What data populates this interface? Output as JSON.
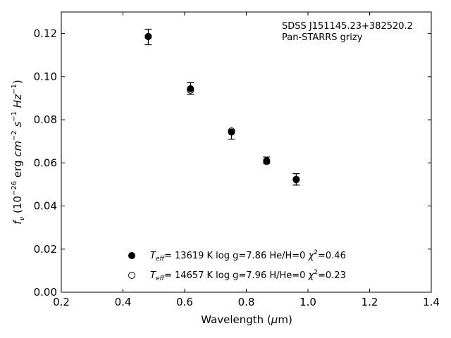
{
  "chart_data": {
    "type": "scatter",
    "xlim": [
      0.2,
      1.4
    ],
    "ylim": [
      0.0,
      0.13
    ],
    "xticks": [
      "0.2",
      "0.4",
      "0.6",
      "0.8",
      "1.0",
      "1.2",
      "1.4"
    ],
    "yticks": [
      "0.00",
      "0.02",
      "0.04",
      "0.06",
      "0.08",
      "0.10",
      "0.12"
    ],
    "xlabel": {
      "pre": "Wavelength (",
      "sym": "μ",
      "post": "m)"
    },
    "ylabel": {
      "f": "f",
      "nu": "ν",
      "p1": " (10",
      "e1": "−26",
      "p2": " erg ",
      "cm": "cm",
      "e2": "−2",
      "s": "s",
      "e3": "−1",
      "hz": "Hz",
      "e4": "−1",
      "p3": ")"
    },
    "annotation": [
      "SDSS J151145.23+382520.2",
      "Pan-STARRS grizy"
    ],
    "grid": false,
    "legend_placement": "lower-center",
    "observed": {
      "x": [
        0.482,
        0.619,
        0.752,
        0.866,
        0.962
      ],
      "y": [
        0.1186,
        0.0944,
        0.0746,
        0.0612,
        0.0524
      ],
      "err_low": [
        0.1148,
        0.0918,
        0.071,
        0.0598,
        0.0497
      ],
      "err_high": [
        0.122,
        0.0972,
        0.0752,
        0.0627,
        0.055
      ]
    },
    "series": [
      {
        "marker": "filled",
        "x": [
          0.482,
          0.619,
          0.752,
          0.866,
          0.962
        ],
        "y": [
          0.1186,
          0.0944,
          0.0743,
          0.061,
          0.0524
        ],
        "legend": {
          "t": "T",
          "sub": "eff",
          "mid": "= 13619 K  log g=7.86  He/H=0  ",
          "chi": "χ",
          "sup": "2",
          "end": "=0.46"
        }
      },
      {
        "marker": "open",
        "x": [
          0.482,
          0.619,
          0.752,
          0.866,
          0.962
        ],
        "y": [
          0.1186,
          0.0938,
          0.0748,
          0.0606,
          0.0522
        ],
        "legend": {
          "t": "T",
          "sub": "eff",
          "mid": "= 14657 K  log g=7.96  H/He=0  ",
          "chi": "χ",
          "sup": "2",
          "end": "=0.23"
        }
      }
    ],
    "colors": {
      "marker": "#000000",
      "axes": "#000000",
      "background": "#ffffff"
    }
  }
}
